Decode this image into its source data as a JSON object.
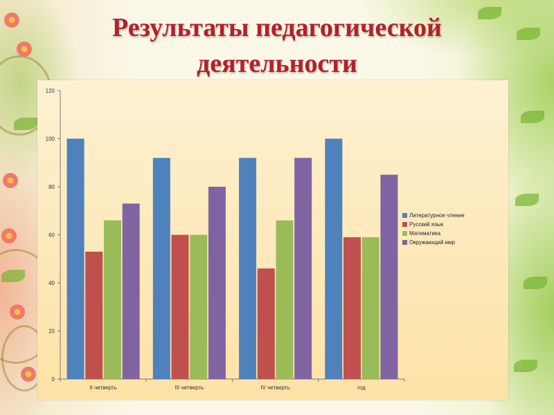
{
  "slide": {
    "title_line1": "Результаты педагогической",
    "title_line2": "деятельности"
  },
  "colors": {
    "title": "#b3202a",
    "panel": "#fde6b0"
  },
  "chart_data": {
    "type": "bar",
    "title": "",
    "xlabel": "",
    "ylabel": "",
    "ylim": [
      0,
      120
    ],
    "yticks": [
      0,
      20,
      40,
      60,
      80,
      100,
      120
    ],
    "grid": false,
    "legend_position": "right",
    "categories": [
      "II четверть",
      "III четверть",
      "IV четверть",
      "год"
    ],
    "series": [
      {
        "name": "Литературное чтение",
        "color": "#4f81bd",
        "values": [
          100,
          92,
          92,
          100
        ]
      },
      {
        "name": "Русский язык",
        "color": "#c0504d",
        "values": [
          53,
          60,
          46,
          59
        ]
      },
      {
        "name": "Математика",
        "color": "#9bbb59",
        "values": [
          66,
          60,
          66,
          59
        ]
      },
      {
        "name": "Окружающий мир",
        "color": "#8064a2",
        "values": [
          73,
          80,
          92,
          85
        ]
      }
    ]
  }
}
